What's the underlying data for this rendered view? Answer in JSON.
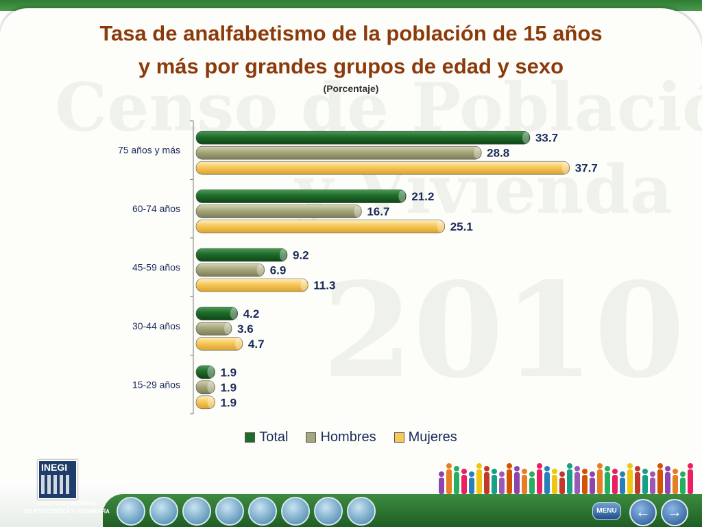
{
  "header": {
    "title_line1": "Tasa de analfabetismo de la población de 15 años",
    "title_line2": "y más por grandes grupos de edad y sexo",
    "subtitle": "(Porcentaje)"
  },
  "watermark": {
    "line1": "Censo de Población",
    "line2": "y Vivienda",
    "year": "2010"
  },
  "chart_data": {
    "type": "bar",
    "orientation": "horizontal",
    "categories": [
      "75 años y más",
      "60-74 años",
      "45-59 años",
      "30-44 años",
      "15-29 años"
    ],
    "series": [
      {
        "name": "Total",
        "values": [
          33.7,
          21.2,
          9.2,
          4.2,
          1.9
        ],
        "color": "#1f6b2a"
      },
      {
        "name": "Hombres",
        "values": [
          28.8,
          16.7,
          6.9,
          3.6,
          1.9
        ],
        "color": "#a7a77c"
      },
      {
        "name": "Mujeres",
        "values": [
          37.7,
          25.1,
          11.3,
          4.7,
          1.9
        ],
        "color": "#f7c85a"
      }
    ],
    "value_labels": {
      "Total": [
        "33.7",
        "21.2",
        "9.2",
        "4.2",
        "1.9"
      ],
      "Hombres": [
        "28.8",
        "16.7",
        "6.9",
        "3.6",
        "1.9"
      ],
      "Mujeres": [
        "37.7",
        "25.1",
        "11.3",
        "4.7",
        "1.9"
      ]
    },
    "xlim": [
      0,
      40
    ],
    "grid": false,
    "legend_position": "bottom"
  },
  "legend": {
    "total": "Total",
    "hombres": "Hombres",
    "mujeres": "Mujeres"
  },
  "footer": {
    "logo_text": "INEGI",
    "institute_line1": "INSTITUTO NACIONAL",
    "institute_line2": "DE ESTADÍSTICA Y GEOGRAFÍA",
    "menu_label": "MENU",
    "prev_glyph": "←",
    "next_glyph": "→"
  },
  "colors": {
    "title": "#8b3a0c",
    "total": "#1f6b2a",
    "hombres": "#a7a77c",
    "mujeres": "#f7c85a",
    "value_text": "#1a2a5a"
  }
}
